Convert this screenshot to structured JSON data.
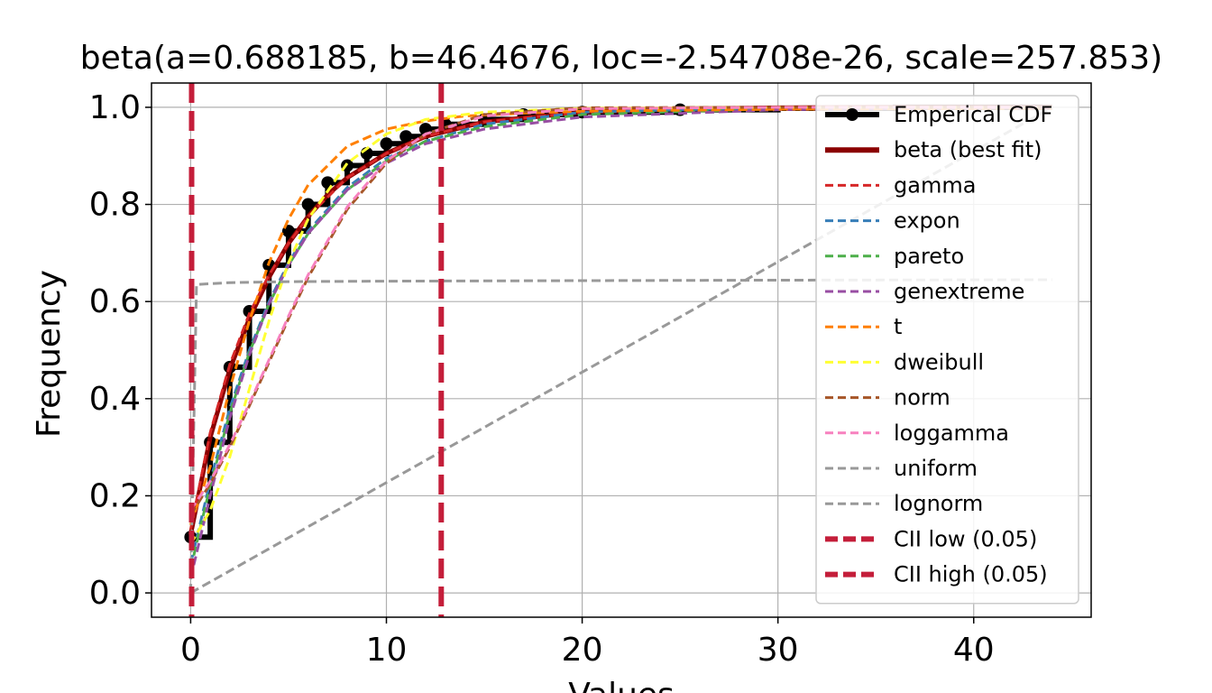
{
  "chart_data": {
    "type": "line",
    "title": "beta(a=0.688185, b=46.4676, loc=-2.54708e-26, scale=257.853)",
    "xlabel": "Values",
    "ylabel": "Frequency",
    "xlim": [
      -2.0,
      46.0
    ],
    "ylim": [
      -0.05,
      1.05
    ],
    "xticks": [
      0,
      10,
      20,
      30,
      40
    ],
    "yticks": [
      0.0,
      0.2,
      0.4,
      0.6,
      0.8,
      1.0
    ],
    "grid": true,
    "legend_position": "upper right",
    "empirical": {
      "name": "Emperical CDF",
      "color": "#000000",
      "x": [
        0.0,
        1.0,
        2.0,
        3.0,
        4.0,
        5.0,
        6.0,
        7.0,
        8.0,
        9.0,
        10.0,
        11.0,
        12.0,
        13.0,
        15.0,
        17.0,
        20.0,
        25.0,
        30.0,
        36.0,
        44.0
      ],
      "y": [
        0.115,
        0.31,
        0.465,
        0.58,
        0.675,
        0.745,
        0.8,
        0.845,
        0.88,
        0.905,
        0.925,
        0.94,
        0.955,
        0.965,
        0.975,
        0.985,
        0.99,
        0.995,
        0.998,
        1.0,
        1.0
      ]
    },
    "series": [
      {
        "name": "beta (best fit)",
        "color": "#8B0000",
        "style": "solid",
        "x": [
          0,
          1,
          2,
          3,
          4,
          5,
          6,
          7,
          8,
          10,
          12,
          15,
          20,
          25,
          30,
          35,
          40,
          44
        ],
        "y": [
          0.12,
          0.32,
          0.46,
          0.565,
          0.65,
          0.72,
          0.775,
          0.82,
          0.855,
          0.905,
          0.94,
          0.97,
          0.99,
          0.997,
          0.999,
          1.0,
          1.0,
          1.0
        ]
      },
      {
        "name": "gamma",
        "color": "#d62728",
        "style": "dashed",
        "x": [
          0,
          1,
          2,
          3,
          4,
          5,
          6,
          8,
          10,
          12,
          15,
          20,
          30,
          44
        ],
        "y": [
          0.13,
          0.33,
          0.47,
          0.575,
          0.655,
          0.72,
          0.775,
          0.855,
          0.905,
          0.94,
          0.97,
          0.99,
          0.999,
          1.0
        ]
      },
      {
        "name": "expon",
        "color": "#377eb8",
        "style": "dashed",
        "x": [
          0,
          1,
          2,
          3,
          4,
          5,
          6,
          8,
          10,
          12,
          15,
          20,
          30,
          44
        ],
        "y": [
          0.06,
          0.23,
          0.38,
          0.5,
          0.6,
          0.68,
          0.745,
          0.835,
          0.895,
          0.93,
          0.965,
          0.99,
          0.999,
          1.0
        ]
      },
      {
        "name": "pareto",
        "color": "#4daf4a",
        "style": "dashed",
        "x": [
          0,
          1,
          2,
          3,
          4,
          5,
          6,
          8,
          10,
          12,
          15,
          20,
          30,
          44
        ],
        "y": [
          0.05,
          0.22,
          0.37,
          0.495,
          0.595,
          0.675,
          0.74,
          0.83,
          0.89,
          0.93,
          0.96,
          0.985,
          0.997,
          1.0
        ]
      },
      {
        "name": "genextreme",
        "color": "#984ea3",
        "style": "dashed",
        "x": [
          0,
          1,
          2,
          3,
          4,
          5,
          6,
          8,
          10,
          12,
          15,
          20,
          30,
          44
        ],
        "y": [
          0.03,
          0.2,
          0.36,
          0.49,
          0.595,
          0.675,
          0.74,
          0.83,
          0.885,
          0.925,
          0.955,
          0.98,
          0.995,
          1.0
        ]
      },
      {
        "name": "t",
        "color": "#ff7f00",
        "style": "dashed",
        "x": [
          0,
          1,
          2,
          3,
          4,
          5,
          6,
          8,
          10,
          12,
          14,
          17,
          20,
          30,
          44
        ],
        "y": [
          0.14,
          0.26,
          0.42,
          0.56,
          0.68,
          0.77,
          0.84,
          0.92,
          0.955,
          0.972,
          0.982,
          0.988,
          0.992,
          0.996,
          0.998
        ]
      },
      {
        "name": "dweibull",
        "color": "#ffff33",
        "style": "dashed",
        "x": [
          0,
          1,
          2,
          3,
          4,
          5,
          6,
          8,
          10,
          12,
          15,
          20,
          30,
          44
        ],
        "y": [
          0.1,
          0.17,
          0.28,
          0.42,
          0.56,
          0.68,
          0.77,
          0.885,
          0.945,
          0.975,
          0.99,
          0.998,
          1.0,
          1.0
        ]
      },
      {
        "name": "norm",
        "color": "#a65628",
        "style": "dashed",
        "x": [
          0,
          1,
          2,
          3,
          4,
          5,
          6,
          8,
          10,
          12,
          15,
          20,
          30,
          44
        ],
        "y": [
          0.16,
          0.225,
          0.3,
          0.385,
          0.475,
          0.565,
          0.65,
          0.79,
          0.885,
          0.945,
          0.985,
          0.999,
          1.0,
          1.0
        ]
      },
      {
        "name": "loggamma",
        "color": "#f781bf",
        "style": "dashed",
        "x": [
          0,
          1,
          2,
          3,
          4,
          5,
          6,
          8,
          10,
          12,
          15,
          20,
          30,
          44
        ],
        "y": [
          0.17,
          0.23,
          0.305,
          0.39,
          0.48,
          0.57,
          0.655,
          0.795,
          0.89,
          0.945,
          0.982,
          0.997,
          1.0,
          1.0
        ]
      },
      {
        "name": "uniform",
        "color": "#999999",
        "style": "dashed",
        "x": [
          0,
          44
        ],
        "y": [
          0.0,
          1.0
        ]
      },
      {
        "name": "lognorm",
        "color": "#999999",
        "style": "dashed",
        "x": [
          0,
          0.3,
          2,
          5,
          10,
          20,
          30,
          44
        ],
        "y": [
          0.0,
          0.635,
          0.639,
          0.641,
          0.642,
          0.643,
          0.644,
          0.645
        ]
      }
    ],
    "vlines": [
      {
        "name": "CII low (0.05)",
        "x": 0.05,
        "color": "#C41E3A"
      },
      {
        "name": "CII high (0.05)",
        "x": 12.8,
        "color": "#C41E3A"
      }
    ]
  }
}
